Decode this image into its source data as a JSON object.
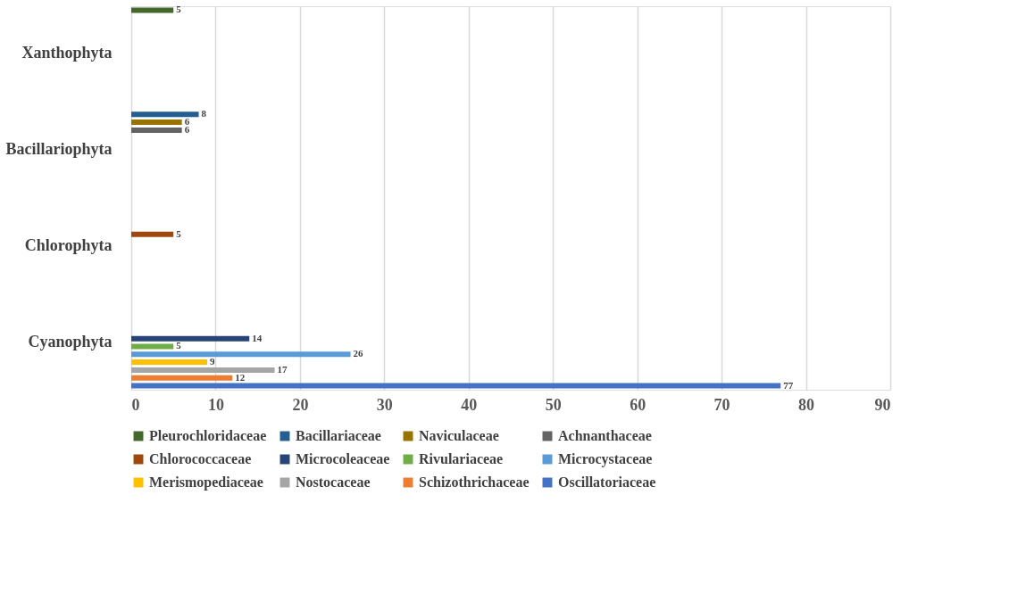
{
  "chart_data": {
    "type": "bar",
    "orientation": "horizontal",
    "categories": [
      "Xanthophyta",
      "Bacillariophyta",
      "Chlorophyta",
      "Cyanophyta"
    ],
    "series": [
      {
        "name": "Pleurochloridaceae",
        "color": "#43682b",
        "values": [
          5,
          null,
          null,
          null
        ]
      },
      {
        "name": "Bacillariaceae",
        "color": "#255e91",
        "values": [
          null,
          8,
          null,
          null
        ]
      },
      {
        "name": "Naviculaceae",
        "color": "#997300",
        "values": [
          null,
          6,
          null,
          null
        ]
      },
      {
        "name": "Achnanthaceae",
        "color": "#636363",
        "values": [
          null,
          6,
          null,
          null
        ]
      },
      {
        "name": "Chlorococcaceae",
        "color": "#9e480e",
        "values": [
          null,
          null,
          5,
          null
        ]
      },
      {
        "name": "Microcoleaceae",
        "color": "#264478",
        "values": [
          null,
          null,
          null,
          14
        ]
      },
      {
        "name": "Rivulariaceae",
        "color": "#70ad47",
        "values": [
          null,
          null,
          null,
          5
        ]
      },
      {
        "name": "Microcystaceae",
        "color": "#5b9bd5",
        "values": [
          null,
          null,
          null,
          26
        ]
      },
      {
        "name": "Merismopediaceae",
        "color": "#ffc000",
        "values": [
          null,
          null,
          null,
          9
        ]
      },
      {
        "name": "Nostocaceae",
        "color": "#a5a5a5",
        "values": [
          null,
          null,
          null,
          17
        ]
      },
      {
        "name": "Schizothrichaceae",
        "color": "#ed7d31",
        "values": [
          null,
          null,
          null,
          12
        ]
      },
      {
        "name": "Oscillatoriaceae",
        "color": "#4472c4",
        "values": [
          null,
          null,
          null,
          77
        ]
      }
    ],
    "xlim": [
      0,
      90
    ],
    "xticks": [
      0,
      10,
      20,
      30,
      40,
      50,
      60,
      70,
      80,
      90
    ],
    "grid": "x",
    "legend": "bottom",
    "data_labels": true
  }
}
